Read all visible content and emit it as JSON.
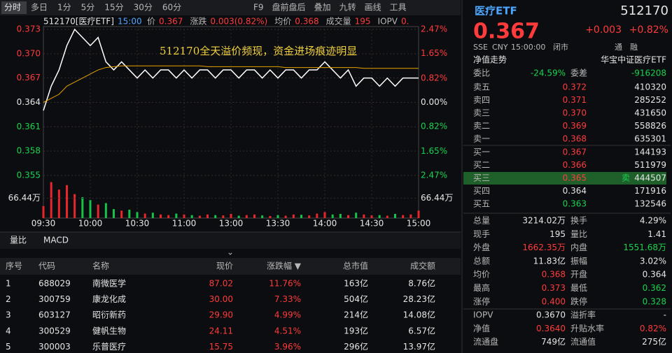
{
  "toolbar": {
    "periods": [
      "分时",
      "多日",
      "1分",
      "5分",
      "15分",
      "30分",
      "60分"
    ],
    "tools": [
      "F9",
      "盘前盘后",
      "叠加",
      "九转",
      "画线",
      "工具"
    ]
  },
  "quote_bar": {
    "code": "512170[医疗ETF]",
    "time": "15:00",
    "items": [
      [
        "价",
        "0.367"
      ],
      [
        "涨跌",
        "0.003(0.82%)"
      ],
      [
        "均价",
        "0.368"
      ],
      [
        "成交量",
        "195"
      ],
      [
        "IOPV",
        "0."
      ]
    ]
  },
  "chart_data": {
    "type": "line",
    "annotation": "512170全天溢价频现，资金进场痕迹明显",
    "categories": [
      "09:30",
      null,
      null,
      null,
      null,
      null,
      "10:00",
      null,
      null,
      null,
      null,
      null,
      "10:30",
      null,
      null,
      null,
      null,
      null,
      "11:00",
      null,
      null,
      null,
      null,
      null,
      "13:00",
      null,
      null,
      null,
      null,
      null,
      "13:30",
      null,
      null,
      null,
      null,
      null,
      "14:00",
      null,
      null,
      null,
      null,
      null,
      "14:30",
      null,
      null,
      null,
      null,
      null,
      "15:00"
    ],
    "series": [
      {
        "color": "#ffffff",
        "values": [
          0.363,
          0.366,
          0.368,
          0.371,
          0.373,
          0.372,
          0.371,
          0.372,
          0.369,
          0.368,
          0.369,
          0.368,
          0.367,
          0.368,
          0.367,
          0.368,
          0.368,
          0.367,
          0.368,
          0.367,
          0.368,
          0.368,
          0.367,
          0.368,
          0.368,
          0.367,
          0.368,
          0.368,
          0.367,
          0.368,
          0.367,
          0.368,
          0.368,
          0.367,
          0.368,
          0.368,
          0.369,
          0.368,
          0.367,
          0.368,
          0.366,
          0.367,
          0.367,
          0.366,
          0.367,
          0.366,
          0.367,
          0.367,
          0.367
        ]
      },
      {
        "color": "#e8a400",
        "values": [
          0.364,
          0.3645,
          0.365,
          0.366,
          0.3665,
          0.367,
          0.3675,
          0.368,
          0.3683,
          0.3684,
          0.3685,
          0.3685,
          0.3685,
          0.3685,
          0.3685,
          0.3685,
          0.3685,
          0.3685,
          0.3685,
          0.3685,
          0.3685,
          0.3684,
          0.3684,
          0.3684,
          0.3684,
          0.3684,
          0.3684,
          0.3684,
          0.3684,
          0.3684,
          0.3684,
          0.3683,
          0.3683,
          0.3683,
          0.3683,
          0.3683,
          0.3683,
          0.3683,
          0.3683,
          0.3683,
          0.3683,
          0.3682,
          0.3682,
          0.3682,
          0.3682,
          0.3682,
          0.3682,
          0.3682,
          0.3682
        ]
      }
    ],
    "ylim": [
      0.355,
      0.373
    ],
    "yticks": [
      0.373,
      {
        "value": 0.37,
        "label": "0.370"
      },
      0.367,
      0.364,
      0.361,
      0.358,
      0.355
    ],
    "y2lim": [
      -2.47,
      2.47
    ],
    "y2ticks": [
      {
        "value": 2.47,
        "label": "2.47%"
      },
      {
        "value": 1.65,
        "label": "1.65%"
      },
      {
        "value": 0.82,
        "label": "0.82%"
      },
      {
        "value": 0,
        "label": "0.00%"
      },
      {
        "value": -0.82,
        "label": "0.82%"
      },
      {
        "value": -1.65,
        "label": "1.65%"
      },
      {
        "value": -2.47,
        "label": "2.47%"
      }
    ],
    "up_color": "#e8262c",
    "down_color": "#15c24a",
    "volume": {
      "values": [
        40,
        120,
        95,
        110,
        80,
        70,
        60,
        45,
        50,
        30,
        25,
        28,
        20,
        15,
        18,
        12,
        10,
        15,
        12,
        10,
        8,
        12,
        10,
        9,
        14,
        8,
        10,
        12,
        9,
        7,
        10,
        8,
        12,
        11,
        9,
        15,
        20,
        12,
        14,
        10,
        18,
        12,
        9,
        10,
        8,
        14,
        10,
        12,
        25
      ],
      "ylim": [
        0,
        132.88
      ],
      "yticks": [
        {
          "value": 66.44,
          "label": "66.44万"
        }
      ]
    }
  },
  "quote": {
    "name": "医疗ETF",
    "code": "512170",
    "price": "0.367",
    "change": "+0.003",
    "pct": "+0.82%",
    "meta": [
      "SSE",
      "CNY",
      "15:00:00",
      "闭市"
    ],
    "tags": [
      "通",
      "融"
    ]
  },
  "nav_row": [
    "净值走势",
    "华宝中证医疗ETF"
  ],
  "order_ratio": [
    "委比",
    "-24.59%",
    "委差",
    "-916208"
  ],
  "asks": [
    [
      "卖五",
      "0.372",
      "410320"
    ],
    [
      "卖四",
      "0.371",
      "285252"
    ],
    [
      "卖三",
      "0.370",
      "431650"
    ],
    [
      "卖二",
      "0.369",
      "558826"
    ],
    [
      "卖一",
      "0.368",
      "635301"
    ]
  ],
  "bids": [
    [
      "买一",
      "0.367",
      "144193"
    ],
    [
      "买二",
      "0.366",
      "511979"
    ],
    [
      "买三",
      "0.365",
      "444507"
    ],
    [
      "买四",
      "0.364",
      "171916"
    ],
    [
      "买五",
      "0.363",
      "132546"
    ]
  ],
  "bid_marker": "卖",
  "stats": [
    [
      "总量",
      "3214.02万",
      "换手",
      "4.29%"
    ],
    [
      "现手",
      "195",
      "量比",
      "1.41"
    ],
    [
      "外盘",
      "1662.35万",
      "内盘",
      "1551.68万"
    ],
    [
      "总额",
      "11.83亿",
      "振幅",
      "3.02%"
    ],
    [
      "均价",
      "0.368",
      "开盘",
      "0.364"
    ],
    [
      "最高",
      "0.373",
      "最低",
      "0.362"
    ],
    [
      "涨停",
      "0.400",
      "跌停",
      "0.328"
    ]
  ],
  "iopv": [
    [
      "IOPV",
      "0.3670",
      "溢折率",
      "-"
    ],
    [
      "净值",
      "0.3640",
      "升贴水率",
      "0.82%"
    ],
    [
      "流通盘",
      "749亿",
      "流通值",
      "275亿"
    ]
  ],
  "table": {
    "tabs": [
      "量比",
      "MACD"
    ],
    "headers": [
      "序号",
      "代码",
      "名称",
      "现价",
      "涨跌幅 ▼",
      "总市值",
      "成交额"
    ],
    "rows": [
      [
        "1",
        "688029",
        "南微医学",
        "87.02",
        "11.76%",
        "163亿",
        "8.76亿"
      ],
      [
        "2",
        "300759",
        "康龙化成",
        "30.00",
        "7.33%",
        "504亿",
        "28.23亿"
      ],
      [
        "3",
        "603127",
        "昭衍新药",
        "29.90",
        "4.99%",
        "214亿",
        "14.08亿"
      ],
      [
        "4",
        "300529",
        "健帆生物",
        "24.11",
        "4.51%",
        "193亿",
        "6.57亿"
      ],
      [
        "5",
        "300003",
        "乐普医疗",
        "15.75",
        "3.96%",
        "296亿",
        "13.97亿"
      ]
    ]
  }
}
